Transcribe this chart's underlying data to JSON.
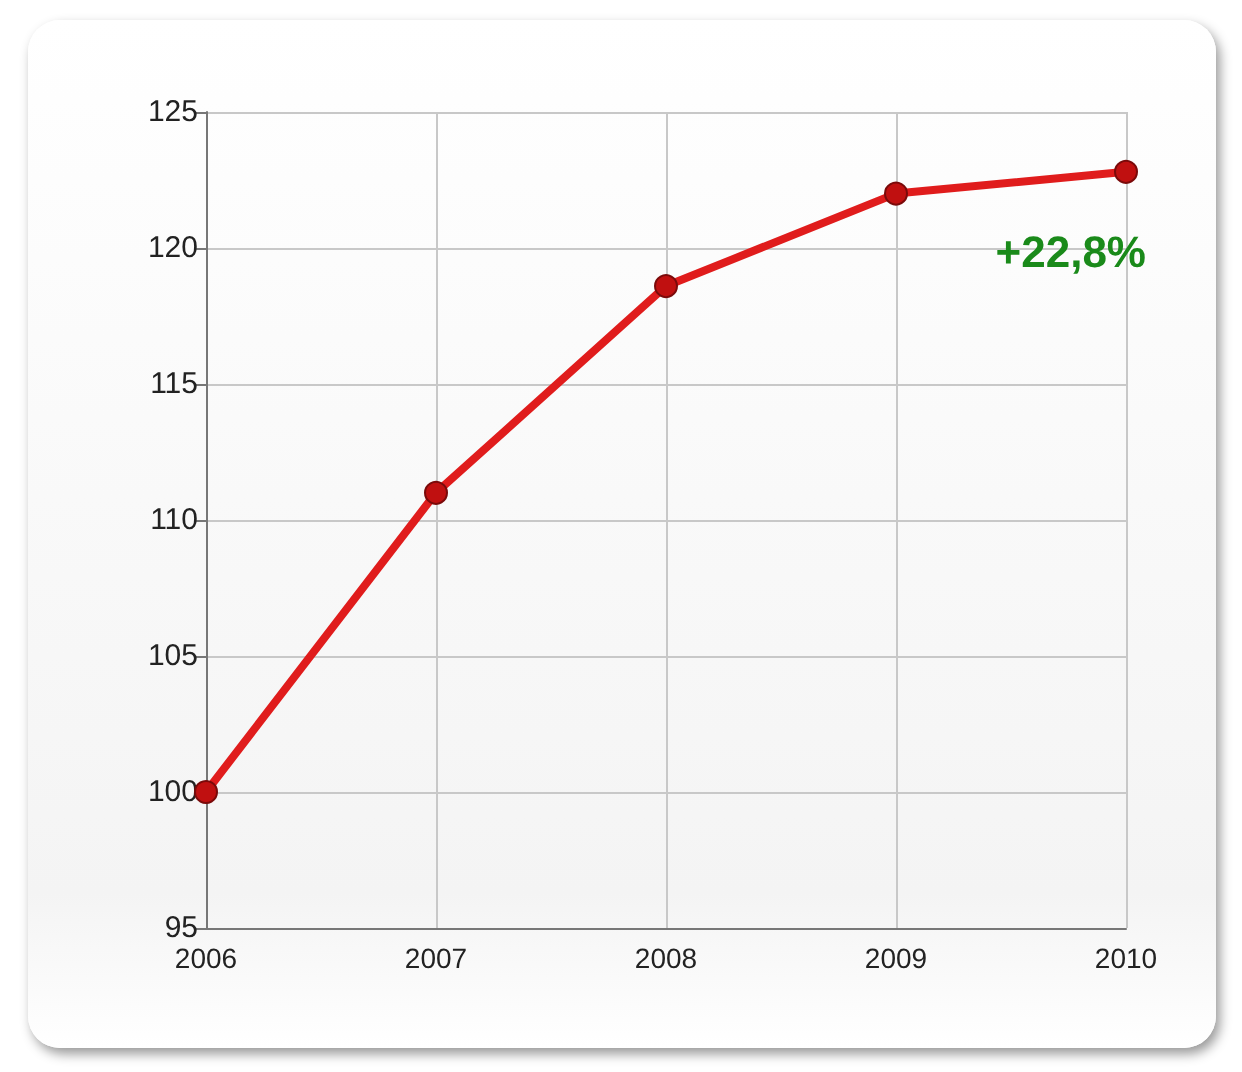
{
  "chart_data": {
    "type": "line",
    "x": [
      2006,
      2007,
      2008,
      2009,
      2010
    ],
    "series": [
      {
        "color": "#e01c1c",
        "values": [
          100,
          111,
          118.6,
          122,
          122.8
        ]
      }
    ],
    "xlim": [
      2006,
      2010
    ],
    "xticks": [
      2006,
      2007,
      2008,
      2009,
      2010
    ],
    "ylim": [
      95,
      125
    ],
    "yticks": [
      95,
      100,
      105,
      110,
      115,
      120,
      125
    ],
    "grid": true,
    "marker": "circle",
    "line_style": "solid",
    "annotations": [
      {
        "text": "+22,8%",
        "x": 2010,
        "y": 122.8
      }
    ]
  }
}
